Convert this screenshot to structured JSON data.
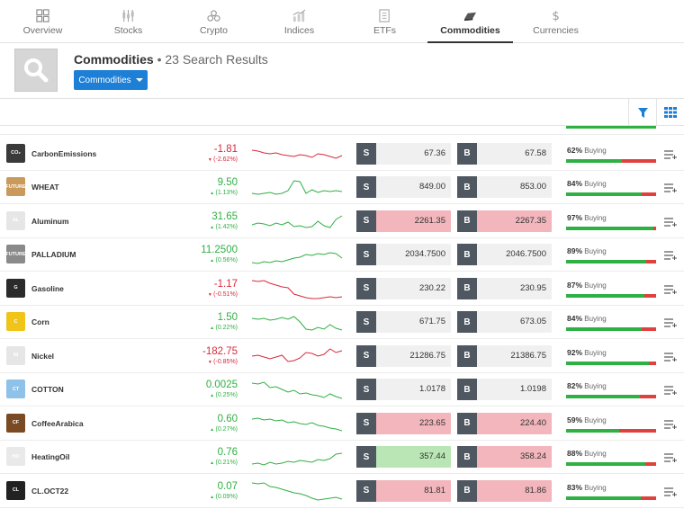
{
  "tabs": [
    {
      "label": "Overview",
      "icon": "overview-icon",
      "active": false
    },
    {
      "label": "Stocks",
      "icon": "stocks-icon",
      "active": false
    },
    {
      "label": "Crypto",
      "icon": "crypto-icon",
      "active": false
    },
    {
      "label": "Indices",
      "icon": "indices-icon",
      "active": false
    },
    {
      "label": "ETFs",
      "icon": "etfs-icon",
      "active": false
    },
    {
      "label": "Commodities",
      "icon": "commodities-icon",
      "active": true
    },
    {
      "label": "Currencies",
      "icon": "currencies-icon",
      "active": false
    }
  ],
  "header": {
    "title": "Commodities",
    "count": "• 23 Search Results",
    "dropdown_label": "Commodities"
  },
  "colors": {
    "up": "#2fb043",
    "down": "#d8293b",
    "accent": "#1d7fd6"
  },
  "sell_letter": "S",
  "buy_letter": "B",
  "sentiment_word": "Buying",
  "rows": [
    {
      "name": "CarbonEmissions",
      "logo": "CO₂",
      "logo_bg": "#3a3a3a",
      "change": "-1.81",
      "pct": "(-2.62%)",
      "dir": "down",
      "sell": "67.36",
      "buy": "67.58",
      "sell_state": "",
      "buy_state": "",
      "sentiment": "62%",
      "sentiment_value": 62,
      "spark": [
        8,
        9,
        11,
        12,
        11,
        13,
        14,
        15,
        13,
        14,
        16,
        12,
        13,
        15,
        17,
        14
      ]
    },
    {
      "name": "WHEAT",
      "logo": "FUTURE",
      "logo_bg": "#c99a5c",
      "change": "9.50",
      "pct": "(1.13%)",
      "dir": "up",
      "sell": "849.00",
      "buy": "853.00",
      "sell_state": "",
      "buy_state": "",
      "sentiment": "84%",
      "sentiment_value": 84,
      "spark": [
        19,
        20,
        19,
        18,
        20,
        19,
        16,
        5,
        6,
        19,
        15,
        18,
        16,
        17,
        16,
        17
      ]
    },
    {
      "name": "Aluminum",
      "logo": "AL",
      "logo_bg": "#e6e6e6",
      "change": "31.65",
      "pct": "(1.42%)",
      "dir": "up",
      "sell": "2261.35",
      "buy": "2267.35",
      "sell_state": "red",
      "buy_state": "red",
      "sentiment": "97%",
      "sentiment_value": 97,
      "spark": [
        16,
        14,
        15,
        17,
        14,
        16,
        13,
        18,
        17,
        19,
        18,
        12,
        17,
        19,
        10,
        6
      ]
    },
    {
      "name": "PALLADIUM",
      "logo": "FUTURE",
      "logo_bg": "#8a8a8a",
      "change": "11.2500",
      "pct": "(0.56%)",
      "dir": "up",
      "sell": "2034.7500",
      "buy": "2046.7500",
      "sell_state": "",
      "buy_state": "",
      "sentiment": "89%",
      "sentiment_value": 89,
      "spark": [
        21,
        22,
        20,
        21,
        19,
        20,
        18,
        16,
        15,
        12,
        13,
        11,
        12,
        10,
        11,
        16
      ]
    },
    {
      "name": "Gasoline",
      "logo": "G",
      "logo_bg": "#2b2b2b",
      "change": "-1.17",
      "pct": "(-0.51%)",
      "dir": "down",
      "sell": "230.22",
      "buy": "230.95",
      "sell_state": "",
      "buy_state": "",
      "sentiment": "87%",
      "sentiment_value": 87,
      "spark": [
        3,
        4,
        3,
        6,
        8,
        10,
        11,
        18,
        20,
        22,
        23,
        23,
        22,
        21,
        22,
        21
      ]
    },
    {
      "name": "Corn",
      "logo": "C",
      "logo_bg": "#f0c419",
      "change": "1.50",
      "pct": "(0.22%)",
      "dir": "up",
      "sell": "671.75",
      "buy": "673.05",
      "sell_state": "",
      "buy_state": "",
      "sentiment": "84%",
      "sentiment_value": 84,
      "spark": [
        8,
        9,
        8,
        10,
        9,
        7,
        9,
        6,
        12,
        20,
        21,
        18,
        20,
        15,
        19,
        21
      ]
    },
    {
      "name": "Nickel",
      "logo": "NI",
      "logo_bg": "#e6e6e6",
      "change": "-182.75",
      "pct": "(-0.85%)",
      "dir": "down",
      "sell": "21286.75",
      "buy": "21386.75",
      "sell_state": "",
      "buy_state": "",
      "sentiment": "92%",
      "sentiment_value": 92,
      "spark": [
        12,
        11,
        13,
        15,
        13,
        11,
        18,
        17,
        14,
        8,
        9,
        12,
        10,
        4,
        8,
        6
      ]
    },
    {
      "name": "COTTON",
      "logo": "CT",
      "logo_bg": "#8fc2e8",
      "change": "0.0025",
      "pct": "(0.25%)",
      "dir": "up",
      "sell": "1.0178",
      "buy": "1.0198",
      "sell_state": "",
      "buy_state": "",
      "sentiment": "82%",
      "sentiment_value": 82,
      "spark": [
        5,
        6,
        4,
        10,
        9,
        12,
        15,
        13,
        17,
        16,
        18,
        19,
        21,
        17,
        20,
        22
      ]
    },
    {
      "name": "CoffeeArabica",
      "logo": "CF",
      "logo_bg": "#7a4a22",
      "change": "0.60",
      "pct": "(0.27%)",
      "dir": "up",
      "sell": "223.65",
      "buy": "224.40",
      "sell_state": "red",
      "buy_state": "red",
      "sentiment": "59%",
      "sentiment_value": 59,
      "spark": [
        7,
        6,
        8,
        7,
        9,
        8,
        11,
        10,
        12,
        13,
        11,
        14,
        15,
        17,
        18,
        20
      ]
    },
    {
      "name": "HeatingOil",
      "logo": "HO",
      "logo_bg": "#e9e9e9",
      "change": "0.76",
      "pct": "(0.21%)",
      "dir": "up",
      "sell": "357.44",
      "buy": "358.24",
      "sell_state": "green",
      "buy_state": "red",
      "sentiment": "88%",
      "sentiment_value": 88,
      "spark": [
        20,
        19,
        21,
        18,
        20,
        19,
        17,
        18,
        16,
        17,
        18,
        15,
        16,
        14,
        9,
        8
      ]
    },
    {
      "name": "CL.OCT22",
      "logo": "CL",
      "logo_bg": "#222222",
      "change": "0.07",
      "pct": "(0.09%)",
      "dir": "up",
      "sell": "81.81",
      "buy": "81.86",
      "sell_state": "red",
      "buy_state": "red",
      "sentiment": "83%",
      "sentiment_value": 83,
      "spark": [
        3,
        4,
        3,
        7,
        8,
        10,
        12,
        14,
        15,
        17,
        20,
        22,
        21,
        20,
        19,
        21
      ]
    }
  ]
}
